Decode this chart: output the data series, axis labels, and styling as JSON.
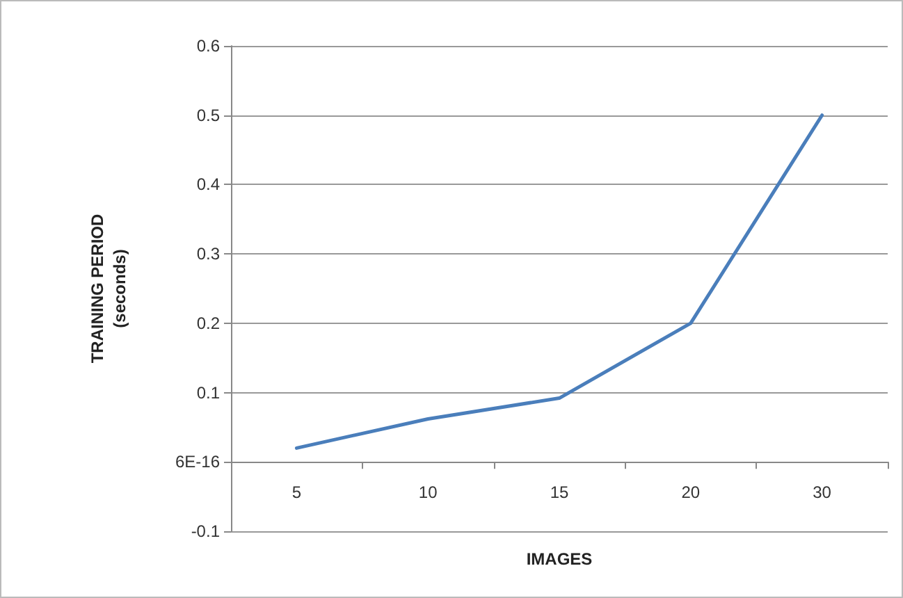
{
  "chart_data": {
    "type": "line",
    "xlabel": "IMAGES",
    "ylabel": "TRAINING PERIOD\n(seconds)",
    "categories": [
      "5",
      "10",
      "15",
      "20",
      "30"
    ],
    "series": [
      {
        "color": "#4a7ebb",
        "values": [
          0.02,
          0.062,
          0.092,
          0.2,
          0.5
        ]
      }
    ],
    "ylim": [
      -0.1,
      0.6
    ],
    "yticks": [
      -0.1,
      {
        "value": 0,
        "label": "6E-16"
      },
      0.1,
      0.2,
      0.3,
      0.4,
      0.5,
      0.6
    ],
    "grid": "y",
    "marker": "none",
    "line_style": "solid"
  }
}
